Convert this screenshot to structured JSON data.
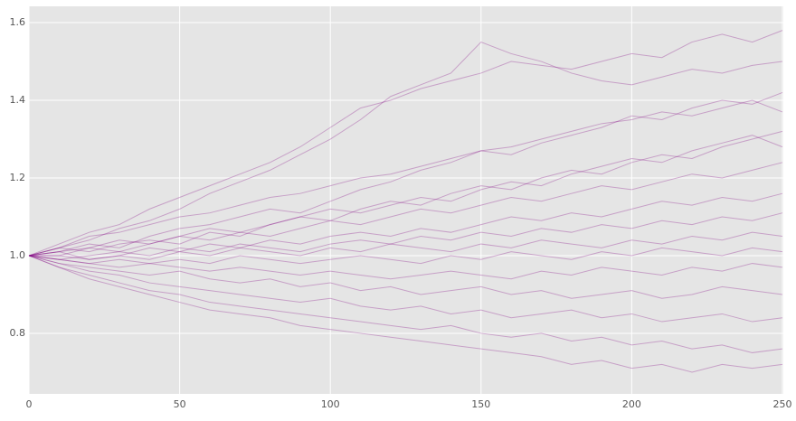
{
  "chart_data": {
    "type": "line",
    "x": [
      0,
      10,
      20,
      30,
      40,
      50,
      60,
      70,
      80,
      90,
      100,
      110,
      120,
      130,
      140,
      150,
      160,
      170,
      180,
      190,
      200,
      210,
      220,
      230,
      240,
      250
    ],
    "xlim": [
      0,
      250.3
    ],
    "xticks": [
      0,
      50,
      100,
      150,
      200,
      250
    ],
    "ylim": [
      0.644,
      1.642
    ],
    "yticks": [
      0.8,
      {
        "value": 1.0,
        "label": "1.0"
      },
      1.2,
      1.4,
      1.6
    ],
    "grid": true,
    "opacity": 0.3,
    "series": [
      {
        "color": "#800080",
        "values": [
          1,
          1.03,
          1.06,
          1.08,
          1.12,
          1.15,
          1.18,
          1.21,
          1.24,
          1.28,
          1.33,
          1.38,
          1.4,
          1.43,
          1.45,
          1.47,
          1.5,
          1.49,
          1.48,
          1.5,
          1.52,
          1.51,
          1.55,
          1.57,
          1.55,
          1.58
        ]
      },
      {
        "color": "#800080",
        "values": [
          1,
          1.02,
          1.04,
          1.07,
          1.09,
          1.12,
          1.16,
          1.19,
          1.22,
          1.26,
          1.3,
          1.35,
          1.41,
          1.44,
          1.47,
          1.55,
          1.52,
          1.5,
          1.47,
          1.45,
          1.44,
          1.46,
          1.48,
          1.47,
          1.49,
          1.5
        ]
      },
      {
        "color": "#800080",
        "values": [
          1,
          1.01,
          1.03,
          1.02,
          1.05,
          1.07,
          1.08,
          1.1,
          1.12,
          1.11,
          1.14,
          1.17,
          1.19,
          1.22,
          1.24,
          1.27,
          1.26,
          1.29,
          1.31,
          1.33,
          1.36,
          1.35,
          1.38,
          1.4,
          1.39,
          1.42
        ]
      },
      {
        "color": "#800080",
        "values": [
          1,
          1.02,
          1.01,
          1.03,
          1.04,
          1.03,
          1.06,
          1.05,
          1.08,
          1.1,
          1.09,
          1.12,
          1.14,
          1.13,
          1.16,
          1.18,
          1.17,
          1.2,
          1.22,
          1.21,
          1.24,
          1.26,
          1.25,
          1.28,
          1.3,
          1.32
        ]
      },
      {
        "color": "#800080",
        "values": [
          1,
          1.0,
          1.02,
          1.01,
          1.03,
          1.05,
          1.04,
          1.06,
          1.05,
          1.07,
          1.09,
          1.08,
          1.1,
          1.12,
          1.11,
          1.13,
          1.15,
          1.14,
          1.16,
          1.18,
          1.17,
          1.19,
          1.21,
          1.2,
          1.22,
          1.24
        ]
      },
      {
        "color": "#800080",
        "values": [
          1,
          1.01,
          0.99,
          1.0,
          1.02,
          1.01,
          1.03,
          1.02,
          1.04,
          1.03,
          1.05,
          1.06,
          1.05,
          1.07,
          1.06,
          1.08,
          1.1,
          1.09,
          1.11,
          1.1,
          1.12,
          1.14,
          1.13,
          1.15,
          1.14,
          1.16
        ]
      },
      {
        "color": "#800080",
        "values": [
          1,
          0.99,
          1.0,
          1.01,
          1.0,
          1.02,
          1.01,
          1.03,
          1.02,
          1.01,
          1.03,
          1.04,
          1.03,
          1.05,
          1.04,
          1.06,
          1.05,
          1.07,
          1.06,
          1.08,
          1.07,
          1.09,
          1.08,
          1.1,
          1.09,
          1.11
        ]
      },
      {
        "color": "#800080",
        "values": [
          1,
          1.0,
          0.99,
          1.0,
          0.99,
          1.01,
          1.0,
          1.02,
          1.01,
          1.0,
          1.02,
          1.01,
          1.03,
          1.02,
          1.01,
          1.03,
          1.02,
          1.04,
          1.03,
          1.02,
          1.04,
          1.03,
          1.05,
          1.04,
          1.06,
          1.05
        ]
      },
      {
        "color": "#800080",
        "values": [
          1,
          0.99,
          0.98,
          0.99,
          0.98,
          0.99,
          0.98,
          1.0,
          0.99,
          0.98,
          0.99,
          1.0,
          0.99,
          0.98,
          1.0,
          0.99,
          1.01,
          1.0,
          0.99,
          1.01,
          1.0,
          1.02,
          1.01,
          1.0,
          1.02,
          1.01
        ]
      },
      {
        "color": "#800080",
        "values": [
          1,
          0.99,
          0.98,
          0.97,
          0.98,
          0.97,
          0.96,
          0.97,
          0.96,
          0.95,
          0.96,
          0.95,
          0.94,
          0.95,
          0.96,
          0.95,
          0.94,
          0.96,
          0.95,
          0.97,
          0.96,
          0.95,
          0.97,
          0.96,
          0.98,
          0.97
        ]
      },
      {
        "color": "#800080",
        "values": [
          1,
          0.98,
          0.97,
          0.96,
          0.95,
          0.96,
          0.94,
          0.93,
          0.94,
          0.92,
          0.93,
          0.91,
          0.92,
          0.9,
          0.91,
          0.92,
          0.9,
          0.91,
          0.89,
          0.9,
          0.91,
          0.89,
          0.9,
          0.92,
          0.91,
          0.9
        ]
      },
      {
        "color": "#800080",
        "values": [
          1,
          0.98,
          0.96,
          0.95,
          0.93,
          0.92,
          0.91,
          0.9,
          0.89,
          0.88,
          0.89,
          0.87,
          0.86,
          0.87,
          0.85,
          0.86,
          0.84,
          0.85,
          0.86,
          0.84,
          0.85,
          0.83,
          0.84,
          0.85,
          0.83,
          0.84
        ]
      },
      {
        "color": "#800080",
        "values": [
          1,
          0.97,
          0.95,
          0.93,
          0.91,
          0.9,
          0.88,
          0.87,
          0.86,
          0.85,
          0.84,
          0.83,
          0.82,
          0.81,
          0.82,
          0.8,
          0.79,
          0.8,
          0.78,
          0.79,
          0.77,
          0.78,
          0.76,
          0.77,
          0.75,
          0.76
        ]
      },
      {
        "color": "#800080",
        "values": [
          1,
          0.97,
          0.94,
          0.92,
          0.9,
          0.88,
          0.86,
          0.85,
          0.84,
          0.82,
          0.81,
          0.8,
          0.79,
          0.78,
          0.77,
          0.76,
          0.75,
          0.74,
          0.72,
          0.73,
          0.71,
          0.72,
          0.7,
          0.72,
          0.71,
          0.72
        ]
      },
      {
        "color": "#800080",
        "values": [
          1,
          1.02,
          1.05,
          1.06,
          1.08,
          1.1,
          1.11,
          1.13,
          1.15,
          1.16,
          1.18,
          1.2,
          1.21,
          1.23,
          1.25,
          1.27,
          1.28,
          1.3,
          1.32,
          1.34,
          1.35,
          1.37,
          1.36,
          1.38,
          1.4,
          1.37
        ]
      },
      {
        "color": "#800080",
        "values": [
          1,
          1.01,
          1.02,
          1.04,
          1.03,
          1.05,
          1.07,
          1.06,
          1.08,
          1.1,
          1.12,
          1.11,
          1.13,
          1.15,
          1.14,
          1.17,
          1.19,
          1.18,
          1.21,
          1.23,
          1.25,
          1.24,
          1.27,
          1.29,
          1.31,
          1.28
        ]
      }
    ]
  }
}
